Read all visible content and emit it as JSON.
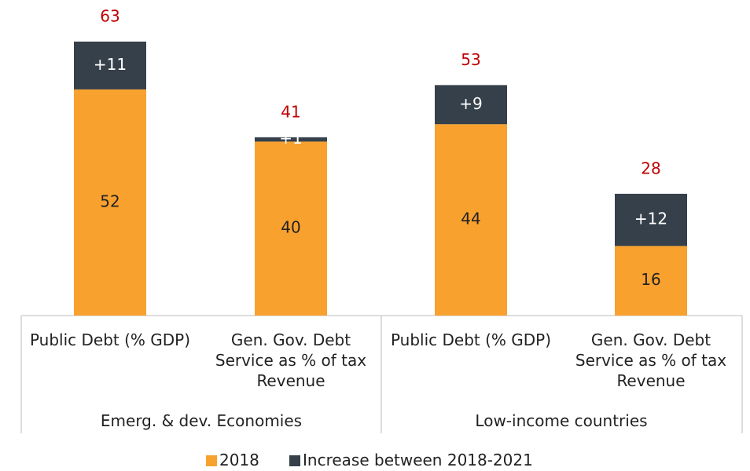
{
  "chart_data": {
    "type": "stacked-bar",
    "categories": [
      "Public Debt (% GDP)",
      "Gen. Gov. Debt Service as % of tax Revenue",
      "Public Debt (% GDP)",
      "Gen. Gov. Debt Service as % of tax Revenue"
    ],
    "groups": [
      "Emerg. & dev. Economies",
      "Low-income countries"
    ],
    "series": [
      {
        "name": "2018",
        "color": "#F9A12E",
        "values": [
          52,
          40,
          44,
          16
        ]
      },
      {
        "name": "Increase between 2018-2021",
        "color": "#36404A",
        "values": [
          11,
          1,
          9,
          12
        ],
        "value_labels": [
          "+11",
          "+1",
          "+9",
          "+12"
        ]
      }
    ],
    "totals": [
      63,
      41,
      53,
      28
    ],
    "total_color": "#C00000"
  }
}
